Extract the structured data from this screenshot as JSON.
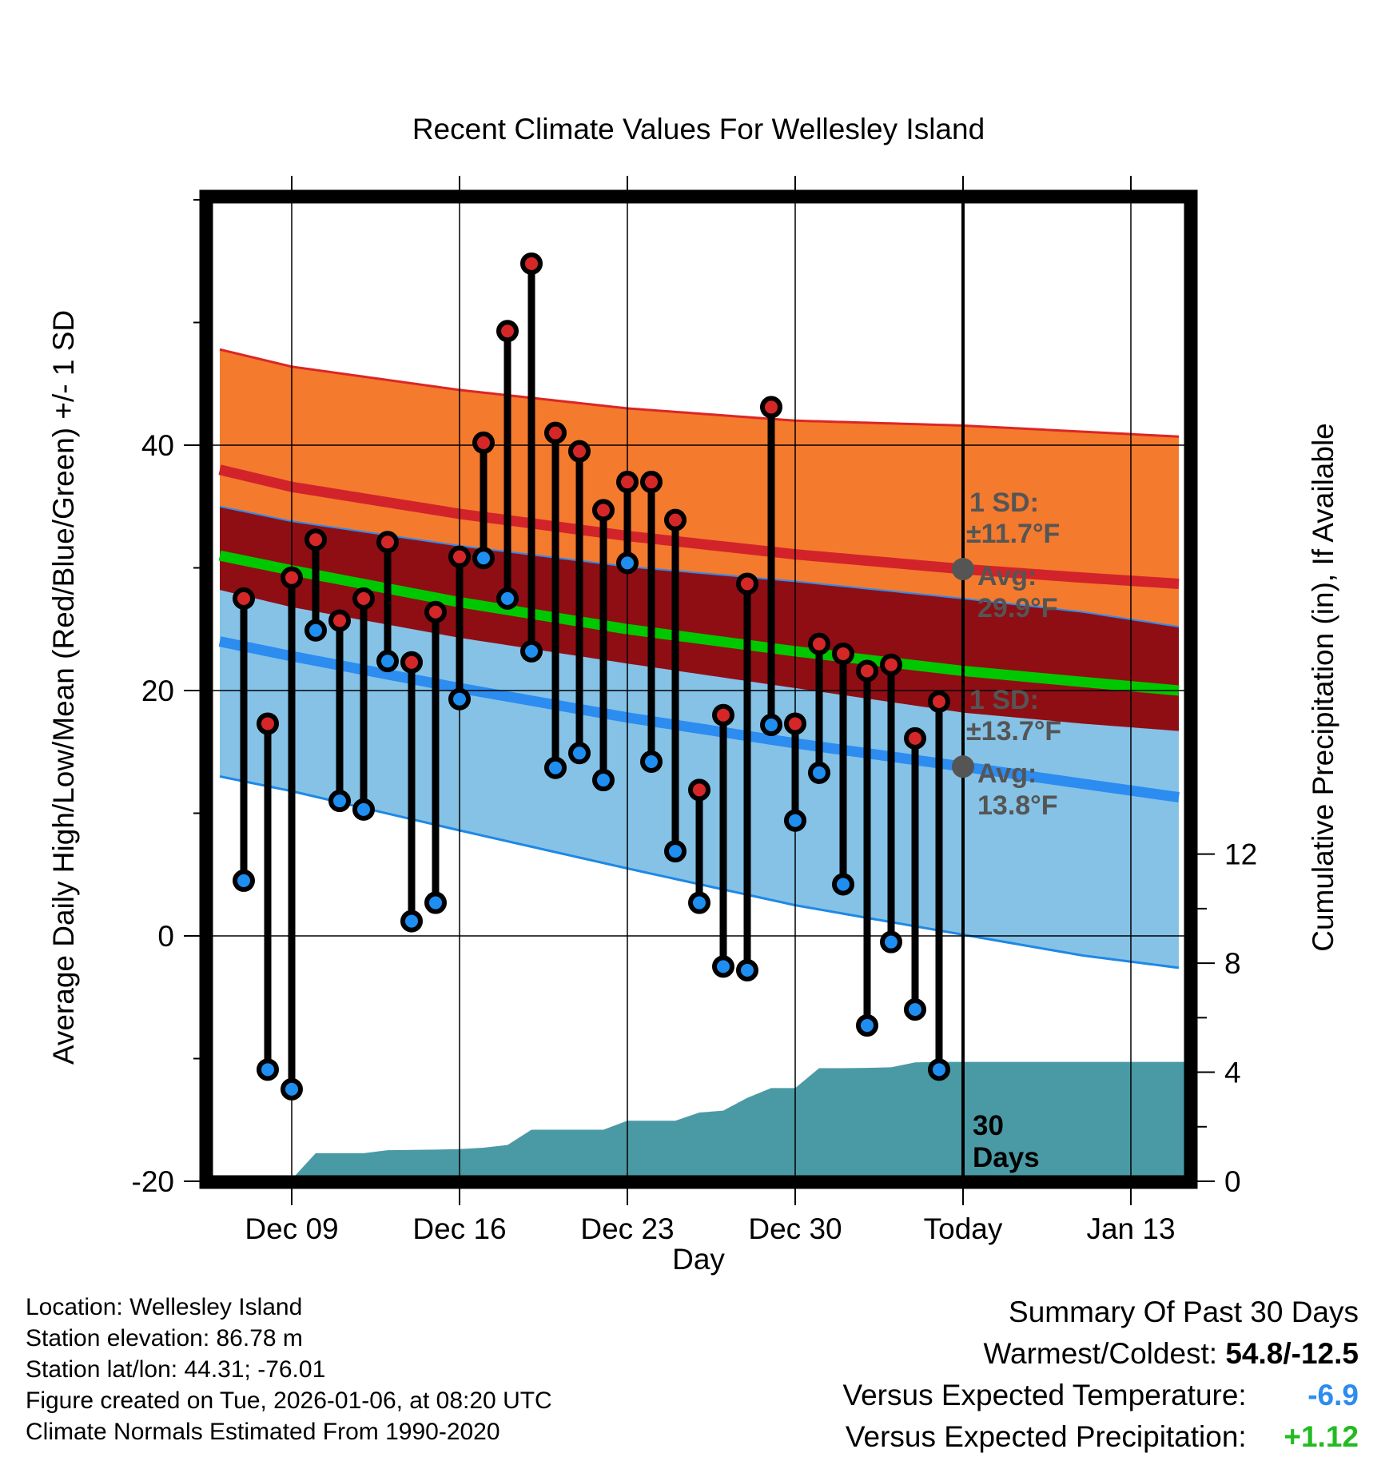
{
  "chart_data": {
    "type": "line",
    "title": "Recent Climate Values For Wellesley Island",
    "xlabel": "Day",
    "ylabel_left": "Average Daily High/Low/Mean (Red/Blue/Green) +/- 1 SD",
    "ylabel_right": "Cumulative Precipitation (in), If Available",
    "x_range": [
      -27.5,
      13.5
    ],
    "y_range_left": [
      -20,
      60
    ],
    "y_range_right": [
      0,
      36
    ],
    "x_tick_labels": [
      {
        "day": -24,
        "label": "Dec 09"
      },
      {
        "day": -17,
        "label": "Dec 16"
      },
      {
        "day": -10,
        "label": "Dec 23"
      },
      {
        "day": -3,
        "label": "Dec 30"
      },
      {
        "day": 4,
        "label": "Today"
      },
      {
        "day": 11,
        "label": "Jan 13"
      }
    ],
    "y_ticks_left": [
      -20,
      0,
      20,
      40
    ],
    "y_ticks_right": [
      0,
      4,
      8,
      12
    ],
    "normals": {
      "x": [
        -27,
        -24,
        -17,
        -10,
        -3,
        4,
        9,
        13
      ],
      "high_mean": [
        38.0,
        36.6,
        34.4,
        32.6,
        31.1,
        29.9,
        29.2,
        28.7
      ],
      "high_sd_top": [
        47.8,
        46.4,
        44.5,
        43.0,
        42.0,
        41.6,
        41.1,
        40.7
      ],
      "low_mean": [
        24.0,
        22.8,
        20.2,
        17.8,
        15.7,
        13.8,
        12.4,
        11.3
      ],
      "low_sd_bottom": [
        13.0,
        11.8,
        8.6,
        5.5,
        2.5,
        0.1,
        -1.6,
        -2.6
      ],
      "mean_mean": [
        31.0,
        29.8,
        27.2,
        25.0,
        23.2,
        21.6,
        20.7,
        20.0
      ]
    },
    "series": [
      {
        "name": "Daily High",
        "x": [
          -26,
          -25,
          -24,
          -23,
          -22,
          -21,
          -20,
          -19,
          -18,
          -17,
          -16,
          -15,
          -14,
          -13,
          -12,
          -11,
          -10,
          -9,
          -8,
          -7,
          -6,
          -5,
          -4,
          -3,
          -2,
          -1,
          0,
          1,
          2,
          3
        ],
        "values": [
          27.5,
          17.3,
          29.2,
          32.3,
          25.7,
          27.5,
          32.1,
          22.3,
          26.4,
          30.9,
          40.2,
          49.3,
          54.8,
          41.0,
          39.5,
          34.7,
          37.0,
          37.0,
          33.9,
          11.9,
          18.0,
          28.7,
          43.1,
          17.3,
          23.8,
          23.0,
          21.6,
          22.1,
          16.1,
          19.1
        ]
      },
      {
        "name": "Daily Low",
        "x": [
          -26,
          -25,
          -24,
          -23,
          -22,
          -21,
          -20,
          -19,
          -18,
          -17,
          -16,
          -15,
          -14,
          -13,
          -12,
          -11,
          -10,
          -9,
          -8,
          -7,
          -6,
          -5,
          -4,
          -3,
          -2,
          -1,
          0,
          1,
          2,
          3
        ],
        "values": [
          4.5,
          -10.9,
          -12.5,
          24.9,
          11.0,
          10.3,
          22.4,
          1.2,
          2.7,
          19.3,
          30.8,
          27.5,
          23.2,
          13.7,
          14.9,
          12.7,
          30.4,
          14.2,
          6.9,
          2.7,
          -2.5,
          -2.8,
          17.2,
          9.4,
          13.3,
          4.2,
          -7.3,
          -0.5,
          -6.0,
          -10.9
        ]
      },
      {
        "name": "Cumulative Precipitation",
        "x": [
          -27,
          -26,
          -25,
          -24,
          -23,
          -22,
          -21,
          -20,
          -19,
          -18,
          -17,
          -16,
          -15,
          -14,
          -13,
          -12,
          -11,
          -10,
          -9,
          -8,
          -7,
          -6,
          -5,
          -4,
          -3,
          -2,
          -1,
          0,
          1,
          2,
          3,
          13.5
        ],
        "values": [
          0.0,
          0.03,
          0.05,
          0.07,
          1.03,
          1.03,
          1.03,
          1.14,
          1.15,
          1.16,
          1.18,
          1.23,
          1.33,
          1.89,
          1.89,
          1.89,
          1.89,
          2.22,
          2.22,
          2.22,
          2.52,
          2.59,
          3.06,
          3.42,
          3.42,
          4.15,
          4.15,
          4.16,
          4.18,
          4.36,
          4.38,
          4.38
        ]
      }
    ],
    "today_marker": {
      "x": 4,
      "label": "30 Days"
    },
    "annotations": {
      "high": {
        "sd_label": "1 SD:",
        "sd_value": "±11.7°F",
        "avg_label": "Avg:",
        "avg_value": "29.9°F",
        "avg": 29.9
      },
      "low": {
        "sd_label": "1 SD:",
        "sd_value": "±13.7°F",
        "avg_label": "Avg:",
        "avg_value": "13.8°F",
        "avg": 13.8
      }
    },
    "colors": {
      "high_band": "#f47a2e",
      "high_line": "#d2232a",
      "high_edge": "#dc2626",
      "mean_band": "#8f0e14",
      "mean_line": "#00c800",
      "low_band": "#85c2e6",
      "low_line": "#2c8cf0",
      "low_edge": "#1e88e5",
      "precip": "#4a9aa5",
      "high_dot": "#d62728",
      "low_dot": "#1f8ef1"
    }
  },
  "footer_left": {
    "location": "Location: Wellesley Island",
    "elevation": "Station elevation: 86.78 m",
    "latlon": "Station lat/lon: 44.31; -76.01",
    "created": "Figure created on Tue, 2026-01-06, at 08:20 UTC",
    "normals": "Climate Normals Estimated From 1990-2020"
  },
  "footer_right": {
    "title": "Summary Of Past 30 Days",
    "warm_cold_label": "Warmest/Coldest:",
    "warm_cold_value": "54.8/-12.5",
    "temp_label": "Versus Expected Temperature:",
    "temp_value": "-6.9",
    "temp_color": "#2c8cf0",
    "precip_label": "Versus Expected Precipitation:",
    "precip_value": "+1.12",
    "precip_color": "#22bb22"
  }
}
